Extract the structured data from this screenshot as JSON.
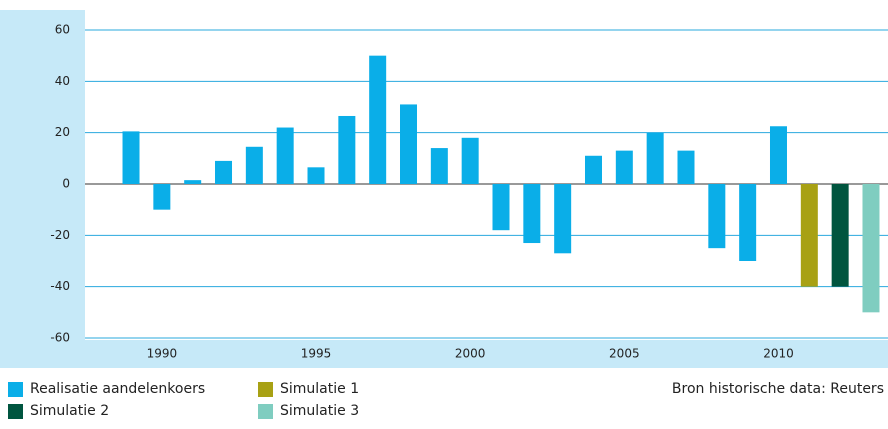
{
  "chart_data": {
    "type": "bar",
    "categories": [
      null,
      "1990",
      null,
      null,
      null,
      null,
      "1995",
      null,
      null,
      null,
      null,
      "2000",
      null,
      null,
      null,
      null,
      "2005",
      null,
      null,
      null,
      null,
      "2010",
      null,
      null,
      null
    ],
    "series": [
      {
        "name": "Realisatie aandelenkoers",
        "color": "#0aaee8",
        "values": [
          20.5,
          -10,
          1.5,
          9,
          14.5,
          22,
          6.5,
          26.5,
          50,
          31,
          14,
          18,
          -18,
          -23,
          -27,
          11,
          13,
          20,
          13,
          -25,
          -30,
          22.5,
          null,
          null,
          null
        ]
      },
      {
        "name": "Simulatie 1",
        "color": "#a8a114",
        "values": [
          null,
          null,
          null,
          null,
          null,
          null,
          null,
          null,
          null,
          null,
          null,
          null,
          null,
          null,
          null,
          null,
          null,
          null,
          null,
          null,
          null,
          null,
          -40,
          null,
          null
        ]
      },
      {
        "name": "Simulatie 2",
        "color": "#00553f",
        "values": [
          null,
          null,
          null,
          null,
          null,
          null,
          null,
          null,
          null,
          null,
          null,
          null,
          null,
          null,
          null,
          null,
          null,
          null,
          null,
          null,
          null,
          null,
          null,
          -40,
          null
        ]
      },
      {
        "name": "Simulatie 3",
        "color": "#7fcdc0",
        "values": [
          null,
          null,
          null,
          null,
          null,
          null,
          null,
          null,
          null,
          null,
          null,
          null,
          null,
          null,
          null,
          null,
          null,
          null,
          null,
          null,
          null,
          null,
          null,
          null,
          -50
        ]
      }
    ],
    "ylim": [
      -60,
      60
    ],
    "yticks": [
      -60,
      -40,
      -20,
      0,
      20,
      40,
      60
    ],
    "grid": true,
    "source": "Bron historische data: Reuters"
  }
}
